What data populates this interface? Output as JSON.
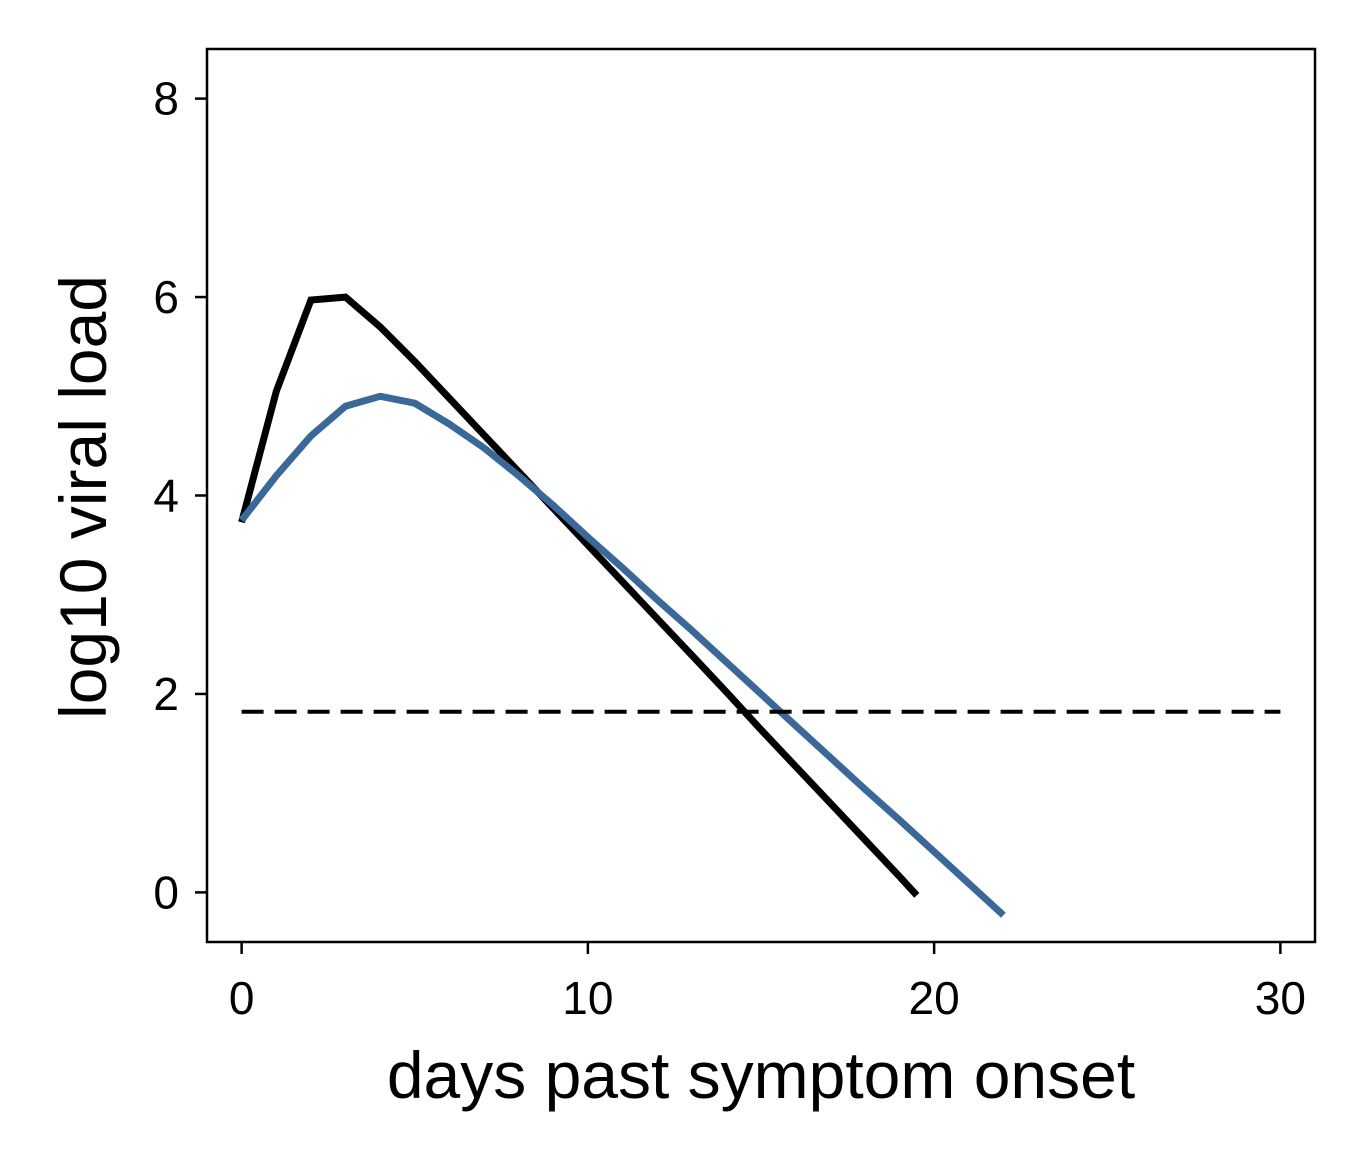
{
  "chart_data": {
    "type": "line",
    "title": "",
    "xlabel": "days past symptom onset",
    "ylabel": "log10 viral load",
    "xlim": [
      -1,
      31
    ],
    "ylim": [
      -0.5,
      8.5
    ],
    "xticks": [
      0,
      10,
      20,
      30
    ],
    "yticks": [
      0,
      2,
      4,
      6,
      8
    ],
    "grid": false,
    "legend": "none",
    "series": [
      {
        "color": "#000000",
        "style": "solid",
        "x": [
          0,
          1,
          2,
          3,
          4,
          5,
          6,
          7,
          8,
          9,
          10,
          11,
          12,
          13,
          14,
          15,
          16,
          17,
          18,
          19,
          19.5
        ],
        "y": [
          3.73,
          5.05,
          5.97,
          6.0,
          5.7,
          5.35,
          4.98,
          4.61,
          4.24,
          3.87,
          3.5,
          3.13,
          2.76,
          2.39,
          2.02,
          1.64,
          1.27,
          0.9,
          0.53,
          0.16,
          -0.03
        ]
      },
      {
        "color": "#3a6898",
        "style": "solid",
        "x": [
          0,
          1,
          2,
          3,
          4,
          5,
          6,
          7,
          8,
          9,
          10,
          11,
          12,
          13,
          14,
          15,
          16,
          17,
          18,
          19,
          20,
          21,
          22
        ],
        "y": [
          3.75,
          4.2,
          4.6,
          4.9,
          5.0,
          4.93,
          4.72,
          4.48,
          4.2,
          3.9,
          3.58,
          3.27,
          2.95,
          2.64,
          2.32,
          2.0,
          1.68,
          1.36,
          1.04,
          0.73,
          0.41,
          0.09,
          -0.23
        ]
      },
      {
        "color": "#000000",
        "style": "dashed",
        "x": [
          0,
          30
        ],
        "y": [
          1.82,
          1.82
        ]
      }
    ]
  }
}
